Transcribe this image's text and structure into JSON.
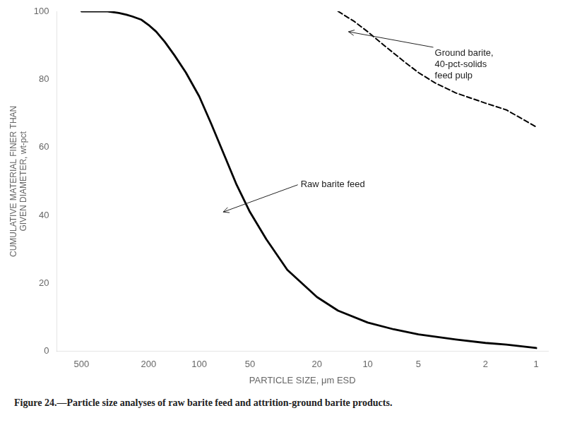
{
  "chart_data": {
    "type": "line",
    "xlabel": "PARTICLE SIZE, μm ESD",
    "ylabel": "CUMULATIVE MATERIAL FINER THAN\nGIVEN DIAMETER, wt-pct",
    "caption": "Figure 24.—Particle size analyses of raw barite feed and attrition-ground barite products.",
    "log": "x",
    "xlim": [
      700,
      0.85
    ],
    "xticks": [
      500,
      200,
      100,
      50,
      20,
      10,
      5,
      2,
      1
    ],
    "ylim": [
      0,
      100
    ],
    "yticks": [
      0,
      20,
      40,
      60,
      80,
      100
    ],
    "grid": false,
    "legend": false,
    "series": [
      {
        "color": "#000000",
        "line_style": "solid",
        "x": [
          500,
          400,
          350,
          300,
          270,
          250,
          220,
          200,
          180,
          160,
          140,
          120,
          100,
          85,
          70,
          60,
          50,
          40,
          30,
          20,
          15,
          10,
          7,
          5,
          3,
          2,
          1.5,
          1.0
        ],
        "values": [
          100,
          100,
          100,
          99.5,
          99,
          98.5,
          97.5,
          96,
          94,
          91,
          87,
          82,
          75,
          67,
          57,
          49,
          41,
          33,
          24,
          16,
          12,
          8.5,
          6.5,
          5,
          3.5,
          2.5,
          2,
          1
        ]
      },
      {
        "color": "#000000",
        "line_style": "dashed",
        "x": [
          15,
          12,
          10,
          8,
          6,
          5,
          4,
          3,
          2,
          1.5,
          1.0
        ],
        "values": [
          100,
          97,
          94,
          90,
          85,
          82,
          79,
          76,
          73,
          71,
          66
        ]
      }
    ],
    "annotations": [
      {
        "text": "Raw barite feed",
        "x": 25,
        "y": 49,
        "arrow_x": 72,
        "arrow_y": 41
      },
      {
        "text": "Ground barite,\n40-pct-solids\nfeed pulp",
        "x": 4.0,
        "y": 89,
        "arrow_x": 13,
        "arrow_y": 94
      }
    ]
  }
}
